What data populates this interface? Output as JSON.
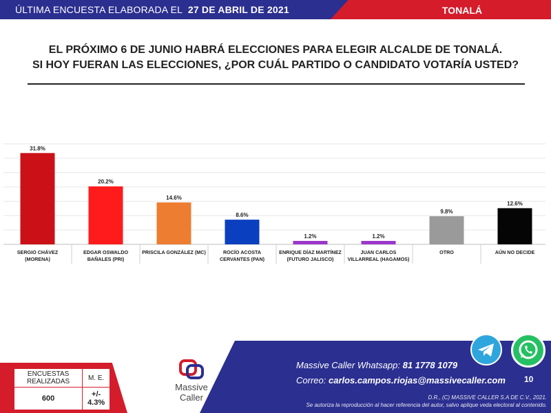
{
  "header": {
    "prefix": "ÚLTIMA ENCUESTA ELABORADA EL",
    "date": "27 DE ABRIL DE 2021",
    "location": "TONALÁ"
  },
  "question": {
    "line1": "EL PRÓXIMO 6 DE JUNIO HABRÁ ELECCIONES PARA ELEGIR ALCALDE DE TONALÁ.",
    "line2": "SI HOY FUERAN LAS ELECCIONES, ¿POR CUÁL PARTIDO O CANDIDATO VOTARÍA USTED?"
  },
  "chart_data": {
    "type": "bar",
    "categories": [
      [
        "SERGIO CHÁVEZ",
        "(MORENA)"
      ],
      [
        "EDGAR OSWALDO",
        "BAÑALES (PRI)"
      ],
      [
        "PRISCILA GONZÁLEZ (MC)"
      ],
      [
        "ROCÍO  ACOSTA",
        "CERVANTES (PAN)"
      ],
      [
        "ENRIQUE DÍAZ MARTÍNEZ",
        "(FUTURO JALISCO)"
      ],
      [
        "JUAN CARLOS",
        "VILLARREAL (HAGAMOS)"
      ],
      [
        "OTRO"
      ],
      [
        "AÚN NO DECIDE"
      ]
    ],
    "values": [
      31.8,
      20.2,
      14.6,
      8.6,
      1.2,
      1.2,
      9.8,
      12.6
    ],
    "data_labels": [
      "31.8%",
      "20.2%",
      "14.6%",
      "8.6%",
      "1.2%",
      "1.2%",
      "9.8%",
      "12.6%"
    ],
    "colors": [
      "#cc1017",
      "#ff1b1b",
      "#ed7d31",
      "#0a3fbf",
      "#9a36c9",
      "#9a36c9",
      "#9a9a9a",
      "#050505"
    ],
    "ylim": [
      0,
      35
    ],
    "grid": true,
    "legend": "none"
  },
  "footer": {
    "stats_header_1": "ENCUESTAS REALIZADAS",
    "stats_header_2": "M. E.",
    "stats_value_1": "600",
    "stats_value_2": "+/- 4.3%",
    "logo_line1": "Massive",
    "logo_line2": "Caller",
    "whatsapp_label": "Massive Caller Whatsapp:",
    "whatsapp_number": "81 1778 1079",
    "email_label": "Correo:",
    "email": "carlos.campos.riojas@massivecaller.com",
    "page_number": "10",
    "legal1": "D.R., (C) MASSIVE CALLER S.A DE C.V., 2021.",
    "legal2": "Se autoriza la reproducción al hacer referencia del autor, salvo aplique veda electoral al contenido."
  },
  "icons": {
    "telegram": "telegram-icon",
    "whatsapp": "whatsapp-icon"
  }
}
